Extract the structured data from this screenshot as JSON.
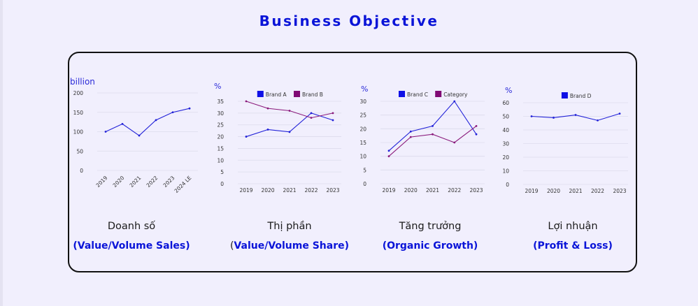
{
  "page": {
    "title": "Business Objective"
  },
  "sections": [
    {
      "caption": "Doanh số",
      "subtitle_prefix": "",
      "subtitle": "(Value/Volume Sales)"
    },
    {
      "caption": "Thị phần",
      "subtitle_prefix": "(",
      "subtitle": "Value/Volume Share)"
    },
    {
      "caption": "Tăng trưởng",
      "subtitle_prefix": "",
      "subtitle": "(Organic Growth)"
    },
    {
      "caption": "Lợi nhuận",
      "subtitle_prefix": "",
      "subtitle": "(Profit & Loss)"
    }
  ],
  "chart_data": [
    {
      "type": "line",
      "unit_label": "billion",
      "categories": [
        "2019",
        "2020",
        "2021",
        "2022",
        "2023",
        "2024 LE"
      ],
      "series": [
        {
          "values": [
            100,
            120,
            90,
            130,
            150,
            160
          ],
          "color": "#2222d8"
        }
      ],
      "ylim": [
        0,
        200
      ],
      "yticks": [
        0,
        50,
        100,
        150,
        200
      ],
      "xtick_rotation": -45,
      "legend": "none",
      "grid": true
    },
    {
      "type": "line",
      "unit_label": "%",
      "categories": [
        "2019",
        "2020",
        "2021",
        "2022",
        "2023"
      ],
      "series": [
        {
          "name": "Brand A",
          "values": [
            20,
            23,
            22,
            30,
            27
          ],
          "color": "#2222d8",
          "legend_color": "#1010e6"
        },
        {
          "name": "Brand B",
          "values": [
            35,
            32,
            31,
            28,
            30
          ],
          "color": "#8a1a7c",
          "legend_color": "#800a74"
        }
      ],
      "ylim": [
        0,
        35
      ],
      "yticks": [
        0,
        5,
        10,
        15,
        20,
        25,
        30,
        35
      ],
      "legend": "top",
      "grid": true
    },
    {
      "type": "line",
      "unit_label": "%",
      "categories": [
        "2019",
        "2020",
        "2021",
        "2022",
        "2023"
      ],
      "series": [
        {
          "name": "Brand C",
          "values": [
            12,
            19,
            21,
            30,
            18
          ],
          "color": "#2222d8",
          "legend_color": "#1010e6"
        },
        {
          "name": "Category",
          "values": [
            10,
            17,
            18,
            15,
            21
          ],
          "color": "#8a1a7c",
          "legend_color": "#800a74"
        }
      ],
      "ylim": [
        0,
        30
      ],
      "yticks": [
        0,
        5,
        10,
        15,
        20,
        25,
        30
      ],
      "legend": "top",
      "grid": true
    },
    {
      "type": "line",
      "unit_label": "%",
      "categories": [
        "2019",
        "2020",
        "2021",
        "2022",
        "2023"
      ],
      "series": [
        {
          "name": "Brand D",
          "values": [
            50,
            49,
            51,
            47,
            52
          ],
          "color": "#2222d8",
          "legend_color": "#1010e6"
        }
      ],
      "ylim": [
        0,
        60
      ],
      "yticks": [
        0,
        10,
        20,
        30,
        40,
        50,
        60
      ],
      "legend": "top",
      "grid": true
    }
  ]
}
